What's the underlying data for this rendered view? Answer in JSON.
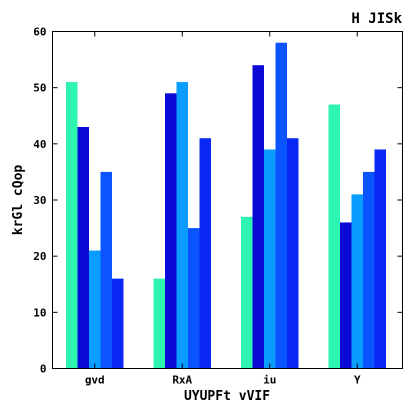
{
  "chart_data": {
    "type": "bar",
    "title": "H JISk",
    "xlabel": "UYUPFt vVIF",
    "ylabel": "krGl cQop",
    "categories": [
      "gvd",
      "RxA",
      "iu",
      "Y"
    ],
    "ylim": [
      0,
      60
    ],
    "yticks": [
      0,
      10,
      20,
      30,
      40,
      50,
      60
    ],
    "grid": false,
    "legend": "none",
    "series": [
      {
        "values": [
          51,
          16,
          27,
          47
        ],
        "color": "#2ef5b0"
      },
      {
        "values": [
          43,
          49,
          54,
          26
        ],
        "color": "#0a0ad6"
      },
      {
        "values": [
          21,
          51,
          39,
          31
        ],
        "color": "#0a9cff"
      },
      {
        "values": [
          35,
          25,
          58,
          35
        ],
        "color": "#0a55ff"
      },
      {
        "values": [
          16,
          41,
          41,
          39
        ],
        "color": "#0a28f5"
      }
    ]
  }
}
